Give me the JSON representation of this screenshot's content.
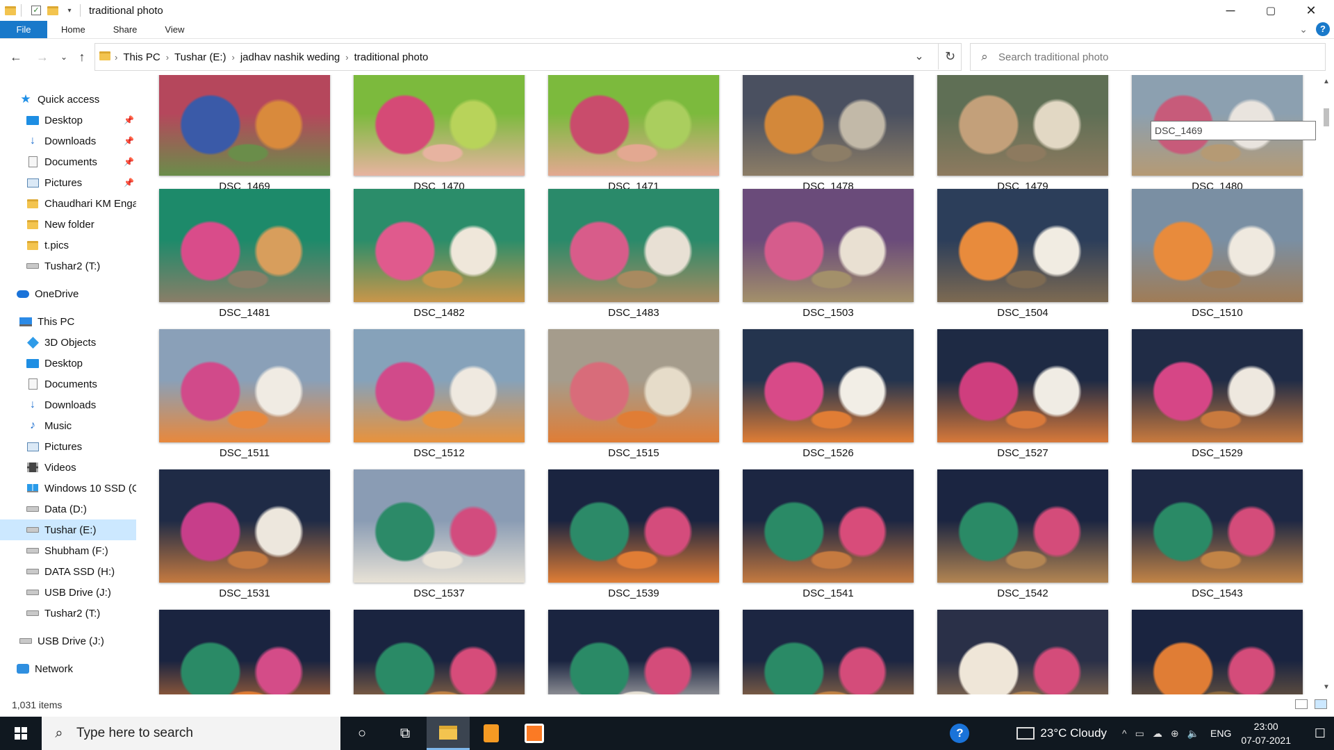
{
  "window": {
    "title": "traditional photo",
    "controls": {
      "minimize": "─",
      "maximize": "▢",
      "close": "✕"
    }
  },
  "ribbon": {
    "tabs": [
      "File",
      "Home",
      "Share",
      "View"
    ],
    "help": "?"
  },
  "address": {
    "crumbs": [
      "This PC",
      "Tushar (E:)",
      "jadhav nashik weding",
      "traditional photo"
    ],
    "search_placeholder": "Search traditional photo"
  },
  "sidebar": {
    "items": [
      {
        "label": "Quick access",
        "icon": "star-icon",
        "pinned": false
      },
      {
        "label": "Desktop",
        "icon": "desktop-icon",
        "pinned": true
      },
      {
        "label": "Downloads",
        "icon": "download-icon",
        "pinned": true
      },
      {
        "label": "Documents",
        "icon": "documents-icon",
        "pinned": true
      },
      {
        "label": "Pictures",
        "icon": "pictures-icon",
        "pinned": true
      },
      {
        "label": "Chaudhari KM Enga",
        "icon": "folder-icon",
        "pinned": false
      },
      {
        "label": "New folder",
        "icon": "folder-icon",
        "pinned": false
      },
      {
        "label": "t.pics",
        "icon": "folder-icon",
        "pinned": false
      },
      {
        "label": "Tushar2 (T:)",
        "icon": "drive-icon",
        "pinned": false
      },
      {
        "label": "OneDrive",
        "icon": "cloud-icon",
        "pinned": false
      },
      {
        "label": "This PC",
        "icon": "pc-icon",
        "pinned": false
      },
      {
        "label": "3D Objects",
        "icon": "3d-objects-icon",
        "pinned": false
      },
      {
        "label": "Desktop",
        "icon": "desktop-icon",
        "pinned": false
      },
      {
        "label": "Documents",
        "icon": "documents-icon",
        "pinned": false
      },
      {
        "label": "Downloads",
        "icon": "download-icon",
        "pinned": false
      },
      {
        "label": "Music",
        "icon": "music-icon",
        "pinned": false
      },
      {
        "label": "Pictures",
        "icon": "pictures-icon",
        "pinned": false
      },
      {
        "label": "Videos",
        "icon": "videos-icon",
        "pinned": false
      },
      {
        "label": "Windows 10 SSD (C",
        "icon": "windows-drive-icon",
        "pinned": false
      },
      {
        "label": "Data (D:)",
        "icon": "drive-icon",
        "pinned": false
      },
      {
        "label": "Tushar (E:)",
        "icon": "drive-icon",
        "pinned": false,
        "selected": true
      },
      {
        "label": "Shubham (F:)",
        "icon": "drive-icon",
        "pinned": false
      },
      {
        "label": "DATA SSD (H:)",
        "icon": "drive-icon",
        "pinned": false
      },
      {
        "label": "USB Drive (J:)",
        "icon": "drive-icon",
        "pinned": false
      },
      {
        "label": "Tushar2 (T:)",
        "icon": "drive-icon",
        "pinned": false
      },
      {
        "label": "USB Drive (J:)",
        "icon": "drive-icon",
        "pinned": false
      },
      {
        "label": "Network",
        "icon": "network-icon",
        "pinned": false
      }
    ]
  },
  "files": [
    "DSC_1469",
    "DSC_1470",
    "DSC_1471",
    "DSC_1478",
    "DSC_1479",
    "DSC_1480",
    "DSC_1481",
    "DSC_1482",
    "DSC_1483",
    "DSC_1503",
    "DSC_1504",
    "DSC_1510",
    "DSC_1511",
    "DSC_1512",
    "DSC_1515",
    "DSC_1526",
    "DSC_1527",
    "DSC_1529",
    "DSC_1531",
    "DSC_1537",
    "DSC_1539",
    "DSC_1541",
    "DSC_1542",
    "DSC_1543",
    "",
    "",
    "",
    "",
    "",
    ""
  ],
  "tooltip": "DSC_1469",
  "status": {
    "item_count": "1,031 items"
  },
  "taskbar": {
    "search_placeholder": "Type here to search",
    "weather": "23°C  Cloudy",
    "language": "ENG",
    "time": "23:00",
    "date": "07-07-2021"
  }
}
